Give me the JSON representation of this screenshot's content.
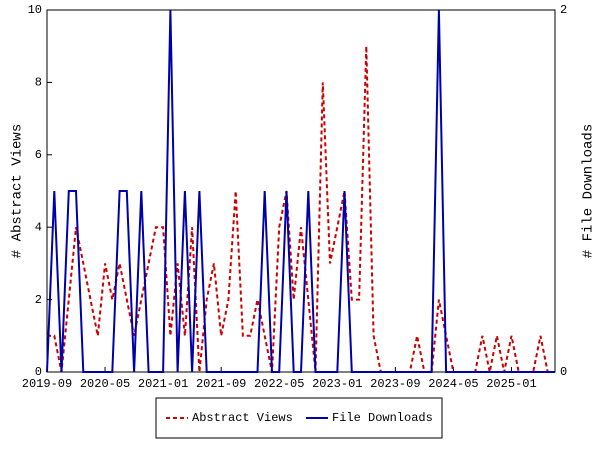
{
  "chart_data": {
    "type": "line",
    "x": [
      "2019-09",
      "2019-10",
      "2019-11",
      "2019-12",
      "2020-01",
      "2020-02",
      "2020-03",
      "2020-04",
      "2020-05",
      "2020-06",
      "2020-07",
      "2020-08",
      "2020-09",
      "2020-10",
      "2020-11",
      "2020-12",
      "2021-01",
      "2021-02",
      "2021-03",
      "2021-04",
      "2021-05",
      "2021-06",
      "2021-07",
      "2021-08",
      "2021-09",
      "2021-10",
      "2021-11",
      "2021-12",
      "2022-01",
      "2022-02",
      "2022-03",
      "2022-04",
      "2022-05",
      "2022-06",
      "2022-07",
      "2022-08",
      "2022-09",
      "2022-10",
      "2022-11",
      "2022-12",
      "2023-01",
      "2023-02",
      "2023-03",
      "2023-04",
      "2023-05",
      "2023-06",
      "2023-07",
      "2023-08",
      "2023-09",
      "2023-10",
      "2023-11",
      "2023-12",
      "2024-01",
      "2024-02",
      "2024-03",
      "2024-04",
      "2024-05",
      "2024-06",
      "2024-07",
      "2024-08",
      "2024-09",
      "2024-10",
      "2024-11",
      "2024-12",
      "2025-01",
      "2025-02",
      "2025-03",
      "2025-04",
      "2025-05",
      "2025-06",
      "2025-07"
    ],
    "series": [
      {
        "name": "Abstract Views",
        "color": "#cc0000",
        "dash": true,
        "values": [
          1,
          1,
          0,
          2,
          4,
          3,
          2,
          1,
          3,
          2,
          3,
          2,
          1,
          2,
          3,
          4,
          4,
          1,
          3,
          1,
          4,
          0,
          2,
          3,
          1,
          2,
          5,
          1,
          1,
          2,
          1,
          0,
          4,
          5,
          2,
          4,
          2,
          0,
          8,
          3,
          4,
          5,
          2,
          2,
          9,
          1,
          0,
          0,
          0,
          0,
          0,
          1,
          0,
          0,
          2,
          1,
          0,
          0,
          0,
          0,
          1,
          0,
          1,
          0,
          1,
          0,
          0,
          0,
          1,
          0,
          0
        ]
      },
      {
        "name": "File Downloads",
        "color": "#0000aa",
        "axis": "y2",
        "values": [
          0,
          1,
          0,
          1,
          1,
          0,
          0,
          0,
          0,
          0,
          1,
          1,
          0,
          1,
          0,
          0,
          0,
          2,
          0,
          1,
          0,
          1,
          0,
          0,
          0,
          0,
          0,
          0,
          0,
          0,
          1,
          0,
          0,
          1,
          0,
          0,
          1,
          0,
          0,
          0,
          0,
          1,
          0,
          0,
          0,
          0,
          0,
          0,
          0,
          0,
          0,
          0,
          0,
          0,
          2,
          0,
          0,
          0,
          0,
          0,
          0,
          0,
          0,
          0,
          0,
          0,
          0,
          0,
          0,
          0,
          0
        ]
      }
    ],
    "xlim": [
      "2019-09",
      "2025-07"
    ],
    "xticks": [
      "2019-09",
      "2020-05",
      "2021-01",
      "2021-09",
      "2022-05",
      "2023-01",
      "2023-09",
      "2024-05",
      "2025-01"
    ],
    "ylim": [
      0,
      10
    ],
    "yticks": [
      0,
      2,
      4,
      6,
      8,
      10
    ],
    "y2lim": [
      0,
      2
    ],
    "y2ticks": [
      0,
      2
    ],
    "ylabel": "# Abstract Views",
    "y2label": "# File Downloads",
    "legend": "bottom"
  }
}
